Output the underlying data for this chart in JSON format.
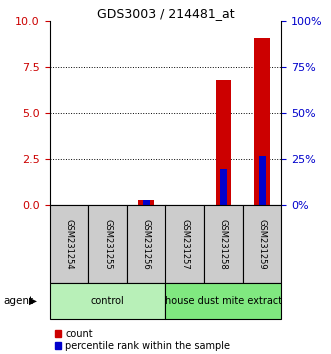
{
  "title": "GDS3003 / 214481_at",
  "samples": [
    "GSM231254",
    "GSM231255",
    "GSM231256",
    "GSM231257",
    "GSM231258",
    "GSM231259"
  ],
  "count_values": [
    0.0,
    0.0,
    0.28,
    0.0,
    6.8,
    9.1
  ],
  "percentile_values": [
    0.0,
    0.0,
    3.0,
    0.0,
    20.0,
    27.0
  ],
  "ylim_left": [
    0,
    10
  ],
  "ylim_right": [
    0,
    100
  ],
  "yticks_left": [
    0,
    2.5,
    5,
    7.5,
    10
  ],
  "yticks_right": [
    0,
    25,
    50,
    75,
    100
  ],
  "groups": [
    {
      "label": "control",
      "indices": [
        0,
        1,
        2
      ],
      "color": "#b8f0b8"
    },
    {
      "label": "house dust mite extract",
      "indices": [
        3,
        4,
        5
      ],
      "color": "#80e880"
    }
  ],
  "agent_label": "agent",
  "count_color": "#cc0000",
  "percentile_color": "#0000cc",
  "bar_width": 0.4,
  "legend_count": "count",
  "legend_percentile": "percentile rank within the sample",
  "sample_box_color": "#cccccc",
  "left_tick_color": "#cc0000",
  "right_tick_color": "#0000cc",
  "title_fontsize": 9,
  "tick_fontsize": 8,
  "sample_fontsize": 6,
  "group_fontsize": 7,
  "legend_fontsize": 7
}
